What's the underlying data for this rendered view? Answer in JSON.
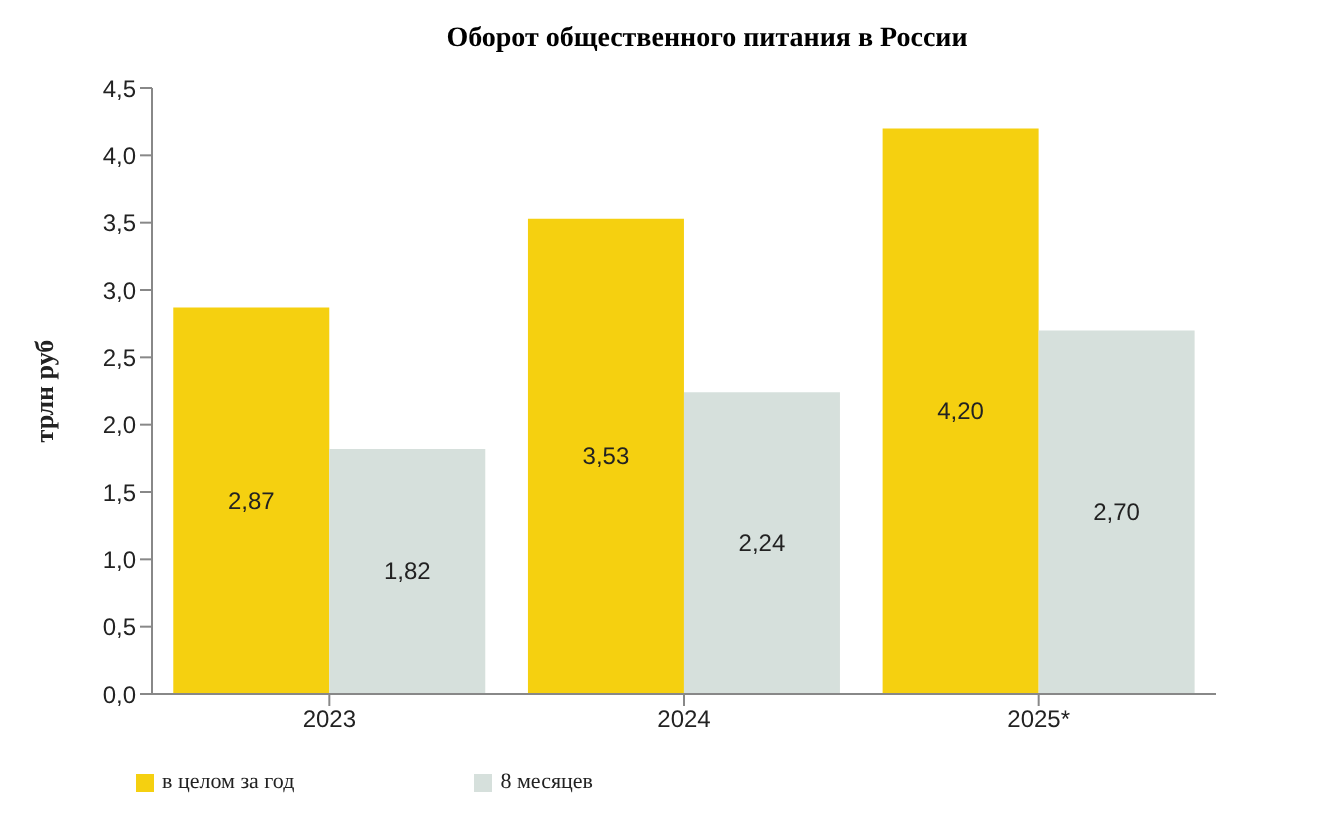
{
  "chart_data": {
    "type": "bar",
    "title": "Оборот общественного питания в России",
    "ylabel": "трлн руб",
    "categories": [
      "2023",
      "2024",
      "2025*"
    ],
    "series": [
      {
        "name": "в целом за год",
        "color": "#f5d010",
        "values": [
          2.87,
          3.53,
          4.2
        ],
        "value_labels": [
          "2,87",
          "3,53",
          "4,20"
        ]
      },
      {
        "name": "8 месяцев",
        "color": "#d6e0dc",
        "values": [
          1.82,
          2.24,
          2.7
        ],
        "value_labels": [
          "1,82",
          "2,24",
          "2,70"
        ]
      }
    ],
    "ylim": [
      0,
      4.5
    ],
    "yticks": [
      {
        "value": 0,
        "label": "0,0"
      },
      {
        "value": 0.5,
        "label": "0,5"
      },
      {
        "value": 1,
        "label": "1,0"
      },
      {
        "value": 1.5,
        "label": "1,5"
      },
      {
        "value": 2,
        "label": "2,0"
      },
      {
        "value": 2.5,
        "label": "2,5"
      },
      {
        "value": 3,
        "label": "3,0"
      },
      {
        "value": 3.5,
        "label": "3,5"
      },
      {
        "value": 4,
        "label": "4,0"
      },
      {
        "value": 4.5,
        "label": "4,5"
      }
    ],
    "grid": false,
    "legend": "bottom left"
  }
}
